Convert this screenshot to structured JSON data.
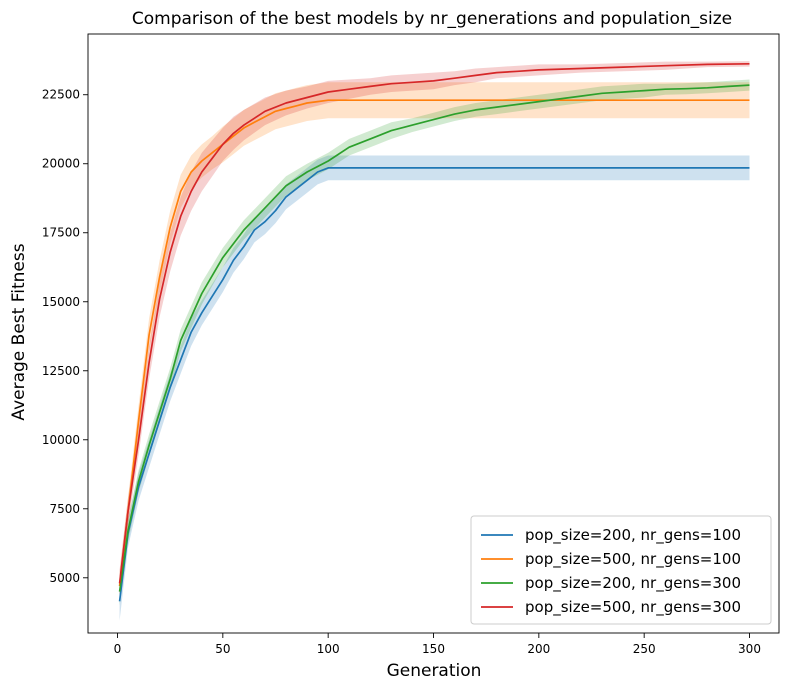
{
  "chart_data": {
    "type": "line",
    "title": "Comparison of the best models by nr_generations and population_size",
    "xlabel": "Generation",
    "ylabel": "Average Best Fitness",
    "xlim": [
      -14,
      314
    ],
    "ylim": [
      3000,
      24700
    ],
    "xticks": [
      0,
      50,
      100,
      150,
      200,
      250,
      300
    ],
    "yticks": [
      5000,
      7500,
      10000,
      12500,
      15000,
      17500,
      20000,
      22500
    ],
    "grid": false,
    "legend_position": "bottom-right",
    "series": [
      {
        "name": "pop_size=200, nr_gens=100",
        "color": "#1f77b4",
        "x": [
          1,
          5,
          10,
          15,
          20,
          25,
          30,
          35,
          40,
          45,
          50,
          55,
          60,
          65,
          70,
          75,
          80,
          85,
          90,
          95,
          100,
          150,
          200,
          250,
          300
        ],
        "y": [
          4150,
          6600,
          8300,
          9500,
          10700,
          11900,
          12900,
          13900,
          14600,
          15200,
          15800,
          16500,
          17000,
          17600,
          17900,
          18300,
          18800,
          19100,
          19400,
          19700,
          19850,
          19850,
          19850,
          19850,
          19850
        ],
        "band": [
          700,
          500,
          500,
          500,
          500,
          500,
          500,
          500,
          450,
          450,
          450,
          450,
          450,
          450,
          450,
          450,
          450,
          450,
          450,
          450,
          450,
          450,
          450,
          450,
          450
        ]
      },
      {
        "name": "pop_size=500, nr_gens=100",
        "color": "#ff7f0e",
        "x": [
          1,
          5,
          10,
          15,
          20,
          25,
          30,
          35,
          40,
          45,
          50,
          55,
          60,
          65,
          70,
          75,
          80,
          85,
          90,
          95,
          100,
          150,
          200,
          250,
          300
        ],
        "y": [
          4700,
          7400,
          10700,
          13800,
          15900,
          17700,
          19000,
          19700,
          20100,
          20400,
          20700,
          21000,
          21300,
          21500,
          21700,
          21900,
          22000,
          22100,
          22200,
          22250,
          22300,
          22300,
          22300,
          22300,
          22300
        ],
        "band": [
          500,
          500,
          550,
          600,
          600,
          600,
          600,
          600,
          600,
          600,
          650,
          650,
          650,
          650,
          650,
          650,
          650,
          650,
          650,
          650,
          650,
          650,
          650,
          650,
          650
        ]
      },
      {
        "name": "pop_size=200, nr_gens=300",
        "color": "#2ca02c",
        "x": [
          1,
          5,
          10,
          15,
          20,
          25,
          30,
          40,
          50,
          60,
          70,
          80,
          90,
          100,
          110,
          120,
          130,
          140,
          150,
          160,
          170,
          180,
          190,
          200,
          210,
          220,
          230,
          240,
          250,
          260,
          270,
          280,
          290,
          300
        ],
        "y": [
          4500,
          6700,
          8500,
          9800,
          11000,
          12200,
          13600,
          15300,
          16600,
          17600,
          18400,
          19200,
          19700,
          20100,
          20600,
          20900,
          21200,
          21400,
          21600,
          21800,
          21950,
          22050,
          22150,
          22250,
          22350,
          22450,
          22550,
          22600,
          22650,
          22700,
          22720,
          22750,
          22800,
          22850
        ],
        "band": [
          500,
          400,
          400,
          400,
          400,
          400,
          400,
          400,
          350,
          350,
          350,
          350,
          300,
          300,
          300,
          300,
          300,
          250,
          250,
          250,
          250,
          250,
          250,
          250,
          250,
          250,
          250,
          250,
          250,
          200,
          200,
          200,
          200,
          200
        ]
      },
      {
        "name": "pop_size=500, nr_gens=300",
        "color": "#d62728",
        "x": [
          1,
          5,
          10,
          15,
          20,
          25,
          30,
          35,
          40,
          45,
          50,
          55,
          60,
          70,
          80,
          90,
          100,
          110,
          120,
          130,
          140,
          150,
          160,
          170,
          180,
          190,
          200,
          220,
          240,
          260,
          280,
          300
        ],
        "y": [
          4800,
          7400,
          10000,
          12800,
          15100,
          16800,
          18100,
          19000,
          19700,
          20200,
          20700,
          21100,
          21400,
          21900,
          22200,
          22400,
          22600,
          22700,
          22800,
          22900,
          22950,
          23000,
          23100,
          23200,
          23300,
          23350,
          23400,
          23450,
          23500,
          23550,
          23600,
          23620
        ],
        "band": [
          500,
          500,
          550,
          600,
          650,
          700,
          700,
          700,
          700,
          650,
          600,
          600,
          550,
          500,
          450,
          400,
          400,
          350,
          300,
          300,
          300,
          300,
          250,
          250,
          200,
          200,
          200,
          150,
          150,
          150,
          100,
          100
        ]
      }
    ]
  }
}
